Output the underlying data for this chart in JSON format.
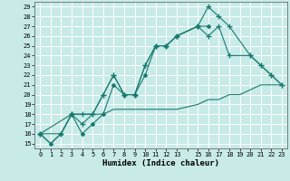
{
  "title": "",
  "xlabel": "Humidex (Indice chaleur)",
  "bg_color": "#c8ebe8",
  "grid_color": "#ffffff",
  "line_color": "#1a7a6e",
  "xlim": [
    -0.5,
    23.5
  ],
  "ylim": [
    14.5,
    29.5
  ],
  "line1": {
    "x": [
      0,
      1,
      2,
      3,
      4,
      5,
      6,
      7,
      8,
      9,
      10,
      11,
      12,
      13,
      15,
      16
    ],
    "y": [
      16,
      15,
      16,
      18,
      16,
      17,
      18,
      21,
      20,
      20,
      22,
      25,
      25,
      26,
      27,
      27
    ],
    "marker": "D",
    "ms": 2.0
  },
  "line2": {
    "x": [
      0,
      2,
      3,
      4,
      5,
      6,
      7,
      8,
      9,
      10,
      11,
      12,
      13,
      15,
      16,
      17,
      18,
      20,
      21,
      22,
      23
    ],
    "y": [
      16,
      16,
      18,
      17,
      18,
      20,
      22,
      20,
      20,
      23,
      25,
      25,
      26,
      27,
      29,
      28,
      27,
      24,
      23,
      22,
      21
    ],
    "marker": "+",
    "ms": 4
  },
  "line3": {
    "x": [
      0,
      3,
      4,
      5,
      6,
      7,
      8,
      9,
      10,
      11,
      12,
      13,
      15,
      16,
      17,
      18,
      20,
      21,
      22,
      23
    ],
    "y": [
      16,
      18,
      18,
      18,
      20,
      22,
      20,
      20,
      23,
      25,
      25,
      26,
      27,
      26,
      27,
      24,
      24,
      23,
      22,
      21
    ],
    "marker": "+",
    "ms": 4
  },
  "line4": {
    "x": [
      0,
      1,
      2,
      3,
      4,
      5,
      6,
      7,
      8,
      9,
      10,
      11,
      12,
      13,
      15,
      16,
      17,
      18,
      19,
      20,
      21,
      22,
      23
    ],
    "y": [
      16,
      15,
      16,
      18,
      18,
      18,
      18,
      18.5,
      18.5,
      18.5,
      18.5,
      18.5,
      18.5,
      18.5,
      19,
      19.5,
      19.5,
      20,
      20,
      20.5,
      21,
      21,
      21
    ],
    "marker": null,
    "ms": 0
  },
  "xtick_positions": [
    0,
    1,
    2,
    3,
    4,
    5,
    6,
    7,
    8,
    9,
    10,
    11,
    12,
    13,
    14,
    15,
    16,
    17,
    18,
    19,
    20,
    21,
    22,
    23
  ],
  "xtick_labels": [
    "0",
    "1",
    "2",
    "3",
    "4",
    "5",
    "6",
    "7",
    "8",
    "9",
    "10",
    "11",
    "12",
    "13",
    "",
    "15",
    "16",
    "17",
    "18",
    "19",
    "20",
    "21",
    "22",
    "23"
  ],
  "ytick_positions": [
    15,
    16,
    17,
    18,
    19,
    20,
    21,
    22,
    23,
    24,
    25,
    26,
    27,
    28,
    29
  ],
  "ytick_labels": [
    "15",
    "16",
    "17",
    "18",
    "19",
    "20",
    "21",
    "22",
    "23",
    "24",
    "25",
    "26",
    "27",
    "28",
    "29"
  ]
}
